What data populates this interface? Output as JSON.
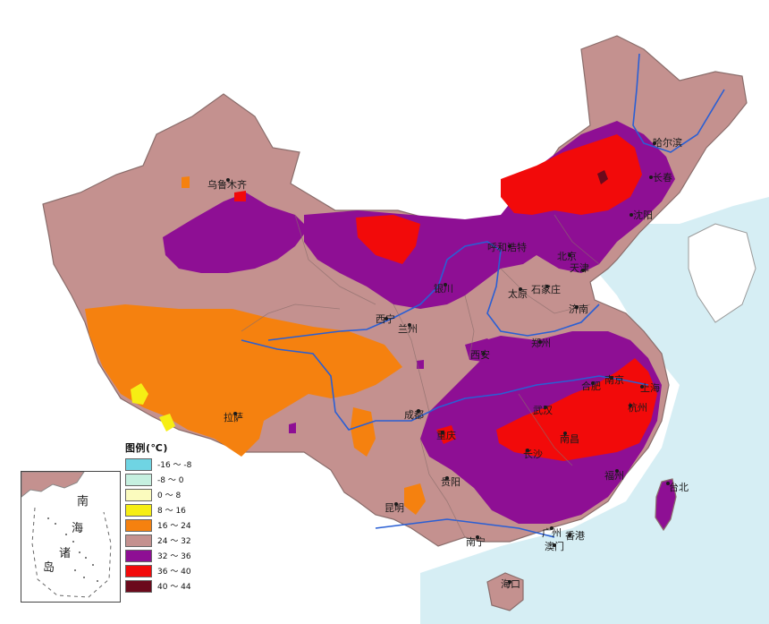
{
  "map": {
    "cities": [
      {
        "key": "urumqi",
        "name": "乌鲁木齐"
      },
      {
        "key": "harbin",
        "name": "哈尔滨"
      },
      {
        "key": "changchun",
        "name": "长春"
      },
      {
        "key": "shenyang",
        "name": "沈阳"
      },
      {
        "key": "hohhot",
        "name": "呼和浩特"
      },
      {
        "key": "beijing",
        "name": "北京"
      },
      {
        "key": "tianjin",
        "name": "天津"
      },
      {
        "key": "yinchuan",
        "name": "银川"
      },
      {
        "key": "taiyuan",
        "name": "太原"
      },
      {
        "key": "shijiazhuang",
        "name": "石家庄"
      },
      {
        "key": "jinan",
        "name": "济南"
      },
      {
        "key": "xining",
        "name": "西宁"
      },
      {
        "key": "lanzhou",
        "name": "兰州"
      },
      {
        "key": "zhengzhou",
        "name": "郑州"
      },
      {
        "key": "xian",
        "name": "西安"
      },
      {
        "key": "hefei",
        "name": "合肥"
      },
      {
        "key": "nanjing",
        "name": "南京"
      },
      {
        "key": "shanghai",
        "name": "上海"
      },
      {
        "key": "hangzhou",
        "name": "杭州"
      },
      {
        "key": "lhasa",
        "name": "拉萨"
      },
      {
        "key": "chengdu",
        "name": "成都"
      },
      {
        "key": "wuhan",
        "name": "武汉"
      },
      {
        "key": "chongqing",
        "name": "重庆"
      },
      {
        "key": "nanchang",
        "name": "南昌"
      },
      {
        "key": "changsha",
        "name": "长沙"
      },
      {
        "key": "fuzhou",
        "name": "福州"
      },
      {
        "key": "taibei",
        "name": "台北"
      },
      {
        "key": "guiyang",
        "name": "贵阳"
      },
      {
        "key": "kunming",
        "name": "昆明"
      },
      {
        "key": "guangzhou",
        "name": "广州"
      },
      {
        "key": "nanning",
        "name": "南宁"
      },
      {
        "key": "xianggang",
        "name": "香港"
      },
      {
        "key": "aomen",
        "name": "澳门"
      },
      {
        "key": "haikou",
        "name": "海口"
      }
    ],
    "colors": {
      "sea": "#d6eef4",
      "land": "#c4918f",
      "border": "#8a6d6b",
      "river": "#2a5fd4"
    }
  },
  "legend": {
    "title": "图例(℃)",
    "items": [
      {
        "label": "-16 ～ -8",
        "color": "#6fd4e3"
      },
      {
        "label": "-8 ～ 0",
        "color": "#c6f0e0"
      },
      {
        "label": "0 ～ 8",
        "color": "#fbfbbe"
      },
      {
        "label": "8 ～ 16",
        "color": "#f6ee14"
      },
      {
        "label": "16 ～ 24",
        "color": "#f5810f"
      },
      {
        "label": "24 ～ 32",
        "color": "#c4918f"
      },
      {
        "label": "32 ～ 36",
        "color": "#8e0f94"
      },
      {
        "label": "36 ～ 40",
        "color": "#f20a0a"
      },
      {
        "label": "40 ～ 44",
        "color": "#6b0a1c"
      }
    ]
  },
  "inset": {
    "label_1": "南",
    "label_2": "海",
    "label_3": "诸",
    "label_4": "岛"
  }
}
